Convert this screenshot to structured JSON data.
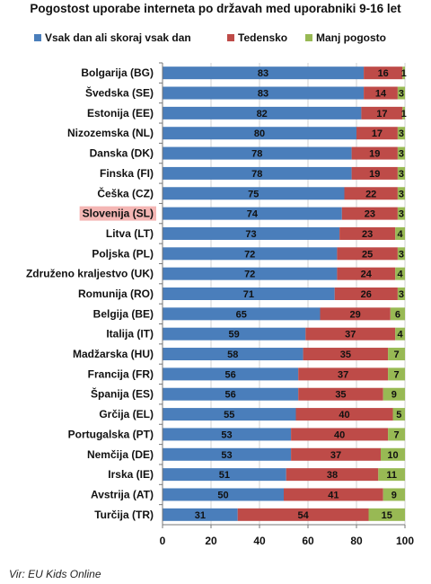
{
  "chart_data": {
    "type": "bar",
    "stacked": true,
    "orientation": "horizontal",
    "title": "Pogostost uporabe interneta po državah med uporabniki 9-16 let",
    "categories": [
      "Bolgarija (BG)",
      "Švedska (SE)",
      "Estonija (EE)",
      "Nizozemska (NL)",
      "Danska (DK)",
      "Finska (FI)",
      "Češka (CZ)",
      "Slovenija (SL)",
      "Litva (LT)",
      "Poljska (PL)",
      "Združeno kraljestvo (UK)",
      "Romunija (RO)",
      "Belgija (BE)",
      "Italija (IT)",
      "Madžarska (HU)",
      "Francija (FR)",
      "Španija (ES)",
      "Grčija (EL)",
      "Portugalska (PT)",
      "Nemčija (DE)",
      "Irska (IE)",
      "Avstrija (AT)",
      "Turčija (TR)"
    ],
    "highlighted_category": "Slovenija (SL)",
    "series": [
      {
        "name": "Vsak dan ali skoraj vsak dan",
        "color": "#4a7ebb",
        "values": [
          83,
          83,
          82,
          80,
          78,
          78,
          75,
          74,
          73,
          72,
          72,
          71,
          65,
          59,
          58,
          56,
          56,
          55,
          53,
          53,
          51,
          50,
          31
        ]
      },
      {
        "name": "Tedensko",
        "color": "#be4b48",
        "values": [
          16,
          14,
          17,
          17,
          19,
          19,
          22,
          23,
          23,
          25,
          24,
          26,
          29,
          37,
          35,
          37,
          35,
          40,
          40,
          37,
          38,
          41,
          54
        ]
      },
      {
        "name": "Manj pogosto",
        "color": "#98b954",
        "values": [
          1,
          3,
          1,
          3,
          3,
          3,
          3,
          3,
          4,
          3,
          4,
          3,
          6,
          4,
          7,
          7,
          9,
          5,
          7,
          10,
          11,
          9,
          15
        ]
      }
    ],
    "xlim": [
      0,
      100
    ],
    "xticks": [
      0,
      20,
      40,
      60,
      80,
      100
    ],
    "grid": true,
    "legend_position": "top"
  },
  "source": "Vir: EU Kids Online"
}
